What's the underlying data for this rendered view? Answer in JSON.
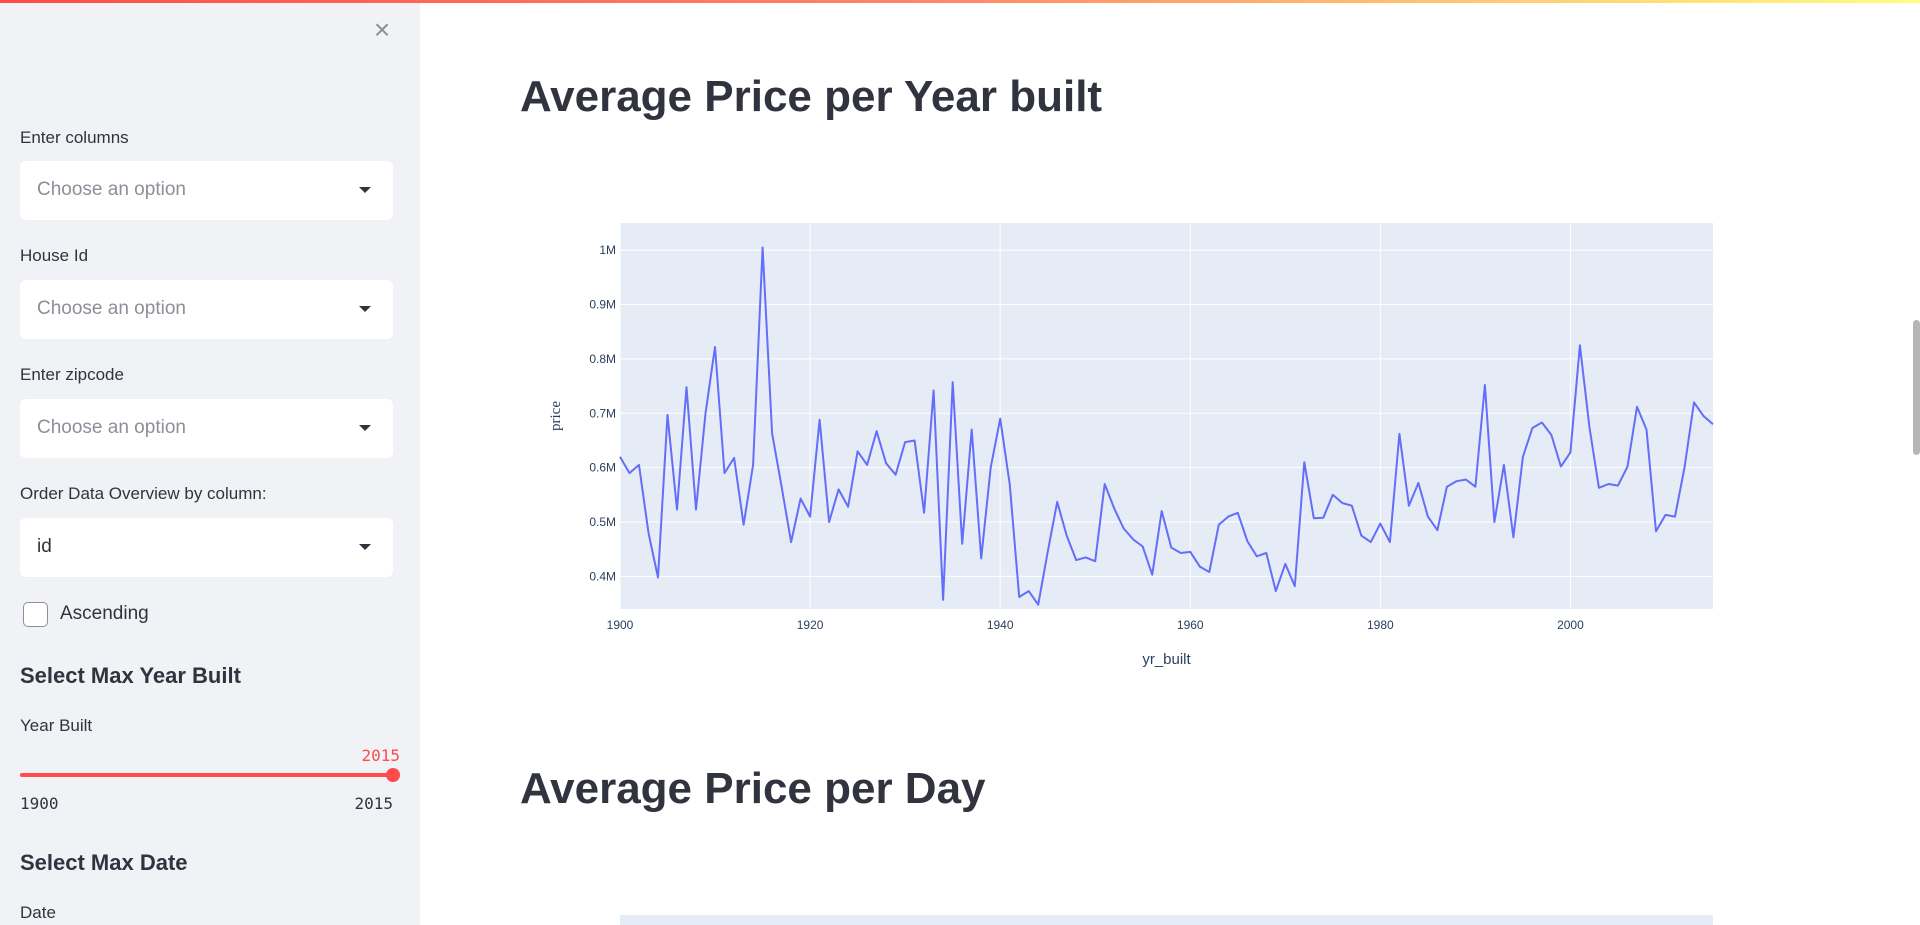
{
  "sidebar": {
    "close_label": "×",
    "filters": [
      {
        "label": "Enter columns",
        "placeholder": "Choose an option"
      },
      {
        "label": "House Id",
        "placeholder": "Choose an option"
      },
      {
        "label": "Enter zipcode",
        "placeholder": "Choose an option"
      }
    ],
    "order": {
      "label": "Order Data Overview by column:",
      "value": "id"
    },
    "ascending": {
      "label": "Ascending",
      "checked": false
    },
    "year_section": {
      "title": "Select Max Year Built",
      "slider_label": "Year Built",
      "value": "2015",
      "min": "1900",
      "max": "2015"
    },
    "date_section": {
      "title": "Select Max Date",
      "label": "Date"
    }
  },
  "main": {
    "chart1_title": "Average Price per Year built",
    "chart2_title": "Average Price per Day"
  },
  "colors": {
    "accent": "#ff4b4b",
    "line": "#636efa",
    "plot_bg": "#e5ecf6"
  },
  "chart_data": {
    "type": "line",
    "title": "Average Price per Year built",
    "xlabel": "yr_built",
    "ylabel": "price",
    "xlim": [
      1900,
      2015
    ],
    "ylim": [
      340000,
      1050000
    ],
    "x_ticks": [
      1900,
      1920,
      1940,
      1960,
      1980,
      2000
    ],
    "y_ticks": [
      {
        "value": 400000,
        "label": "0.4M"
      },
      {
        "value": 500000,
        "label": "0.5M"
      },
      {
        "value": 600000,
        "label": "0.6M"
      },
      {
        "value": 700000,
        "label": "0.7M"
      },
      {
        "value": 800000,
        "label": "0.8M"
      },
      {
        "value": 900000,
        "label": "0.9M"
      },
      {
        "value": 1000000,
        "label": "1M"
      }
    ],
    "series": [
      {
        "x": [
          1900,
          1901,
          1902,
          1903,
          1904,
          1905,
          1906,
          1907,
          1908,
          1909,
          1910,
          1911,
          1912,
          1913,
          1914,
          1915,
          1916,
          1917,
          1918,
          1919,
          1920,
          1921,
          1922,
          1923,
          1924,
          1925,
          1926,
          1927,
          1928,
          1929,
          1930,
          1931,
          1932,
          1933,
          1934,
          1935,
          1936,
          1937,
          1938,
          1939,
          1940,
          1941,
          1942,
          1943,
          1944,
          1945,
          1946,
          1947,
          1948,
          1949,
          1950,
          1951,
          1952,
          1953,
          1954,
          1955,
          1956,
          1957,
          1958,
          1959,
          1960,
          1961,
          1962,
          1963,
          1964,
          1965,
          1966,
          1967,
          1968,
          1969,
          1970,
          1971,
          1972,
          1973,
          1974,
          1975,
          1976,
          1977,
          1978,
          1979,
          1980,
          1981,
          1982,
          1983,
          1984,
          1985,
          1986,
          1987,
          1988,
          1989,
          1990,
          1991,
          1992,
          1993,
          1994,
          1995,
          1996,
          1997,
          1998,
          1999,
          2000,
          2001,
          2002,
          2003,
          2004,
          2005,
          2006,
          2007,
          2008,
          2009,
          2010,
          2011,
          2012,
          2013,
          2014,
          2015
        ],
        "y": [
          620000,
          590000,
          605000,
          480000,
          398000,
          697000,
          523000,
          748000,
          523000,
          700000,
          822000,
          590000,
          618000,
          495000,
          605000,
          1005000,
          663000,
          565000,
          463000,
          543000,
          510000,
          688000,
          500000,
          560000,
          528000,
          630000,
          605000,
          667000,
          608000,
          587000,
          647000,
          650000,
          517000,
          742000,
          357000,
          757000,
          460000,
          670000,
          433000,
          600000,
          690000,
          570000,
          362000,
          373000,
          348000,
          445000,
          537000,
          475000,
          430000,
          435000,
          428000,
          570000,
          525000,
          488000,
          468000,
          455000,
          403000,
          520000,
          453000,
          443000,
          445000,
          418000,
          408000,
          495000,
          510000,
          517000,
          465000,
          437000,
          443000,
          373000,
          423000,
          382000,
          610000,
          507000,
          508000,
          550000,
          535000,
          530000,
          475000,
          463000,
          497000,
          463000,
          662000,
          530000,
          572000,
          510000,
          485000,
          565000,
          575000,
          578000,
          565000,
          752000,
          500000,
          605000,
          472000,
          620000,
          673000,
          683000,
          660000,
          602000,
          628000,
          825000,
          675000,
          563000,
          570000,
          567000,
          602000,
          712000,
          670000,
          483000,
          513000,
          510000,
          600000,
          720000,
          695000,
          680000
        ]
      }
    ]
  }
}
